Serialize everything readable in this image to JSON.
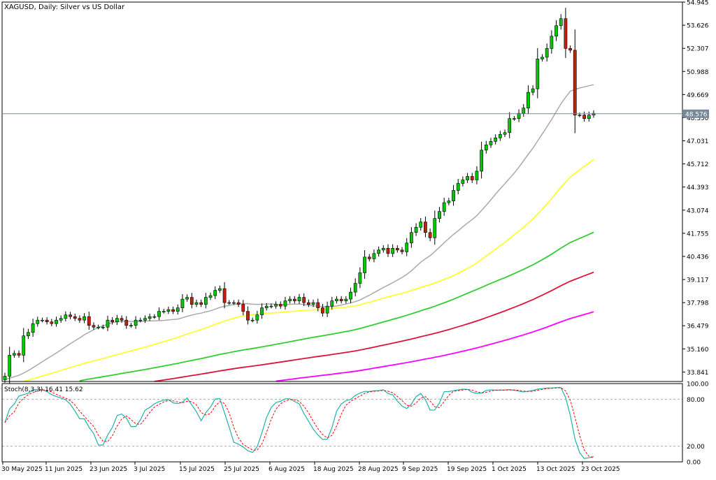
{
  "chart_data": {
    "type": "candlestick",
    "title": "XAGUSD, Daily:  Silver vs US Dollar",
    "current_price": "48.576",
    "y_ticks": [
      "54.945",
      "53.626",
      "52.307",
      "50.988",
      "49.669",
      "48.350",
      "47.031",
      "45.712",
      "44.393",
      "43.074",
      "41.755",
      "40.436",
      "39.117",
      "37.798",
      "36.479",
      "35.160",
      "33.841"
    ],
    "x_ticks": [
      "30 May 2025",
      "11 Jun 2025",
      "23 Jun 2025",
      "3 Jul 2025",
      "15 Jul 2025",
      "25 Jul 2025",
      "6 Aug 2025",
      "18 Aug 2025",
      "28 Aug 2025",
      "9 Sep 2025",
      "19 Sep 2025",
      "1 Oct 2025",
      "13 Oct 2025",
      "23 Oct 2025"
    ],
    "ylim": [
      33.3,
      54.945
    ],
    "colors": {
      "bull": "#00c800",
      "bear": "#c81e0a",
      "wick": "#000000",
      "grid": "#d8d8d8",
      "price_line": "#778899"
    },
    "close": [
      33.6,
      34.8,
      34.9,
      34.8,
      35.9,
      36.1,
      36.6,
      36.8,
      36.8,
      36.7,
      36.6,
      36.8,
      36.9,
      37.1,
      37.0,
      36.9,
      36.8,
      37.0,
      36.5,
      36.4,
      36.4,
      36.4,
      36.8,
      36.7,
      36.9,
      36.8,
      36.5,
      36.5,
      36.8,
      36.8,
      36.9,
      37.0,
      37.0,
      37.3,
      37.3,
      37.4,
      37.3,
      37.5,
      38.0,
      38.1,
      37.7,
      37.8,
      37.7,
      38.1,
      38.2,
      38.5,
      38.6,
      37.8,
      37.8,
      37.8,
      37.7,
      37.3,
      36.8,
      36.8,
      37.1,
      37.5,
      37.6,
      37.6,
      37.7,
      37.6,
      37.9,
      38.0,
      37.9,
      38.1,
      37.8,
      37.7,
      37.8,
      37.5,
      37.2,
      37.6,
      37.9,
      38.0,
      37.9,
      38.0,
      38.4,
      38.9,
      39.5,
      40.4,
      40.3,
      40.6,
      40.8,
      40.9,
      40.6,
      40.9,
      40.8,
      40.7,
      41.2,
      41.8,
      42.1,
      42.4,
      41.8,
      41.5,
      42.6,
      43.0,
      43.5,
      43.6,
      44.2,
      44.6,
      44.8,
      45.0,
      44.8,
      45.3,
      46.5,
      46.8,
      47.0,
      47.2,
      47.4,
      47.5,
      48.3,
      48.3,
      48.6,
      48.9,
      49.8,
      50.0,
      51.7,
      51.8,
      52.3,
      53.0,
      53.6,
      54.0,
      52.3,
      52.2,
      48.5,
      48.5,
      48.3,
      48.5,
      48.6
    ]
  }
}
